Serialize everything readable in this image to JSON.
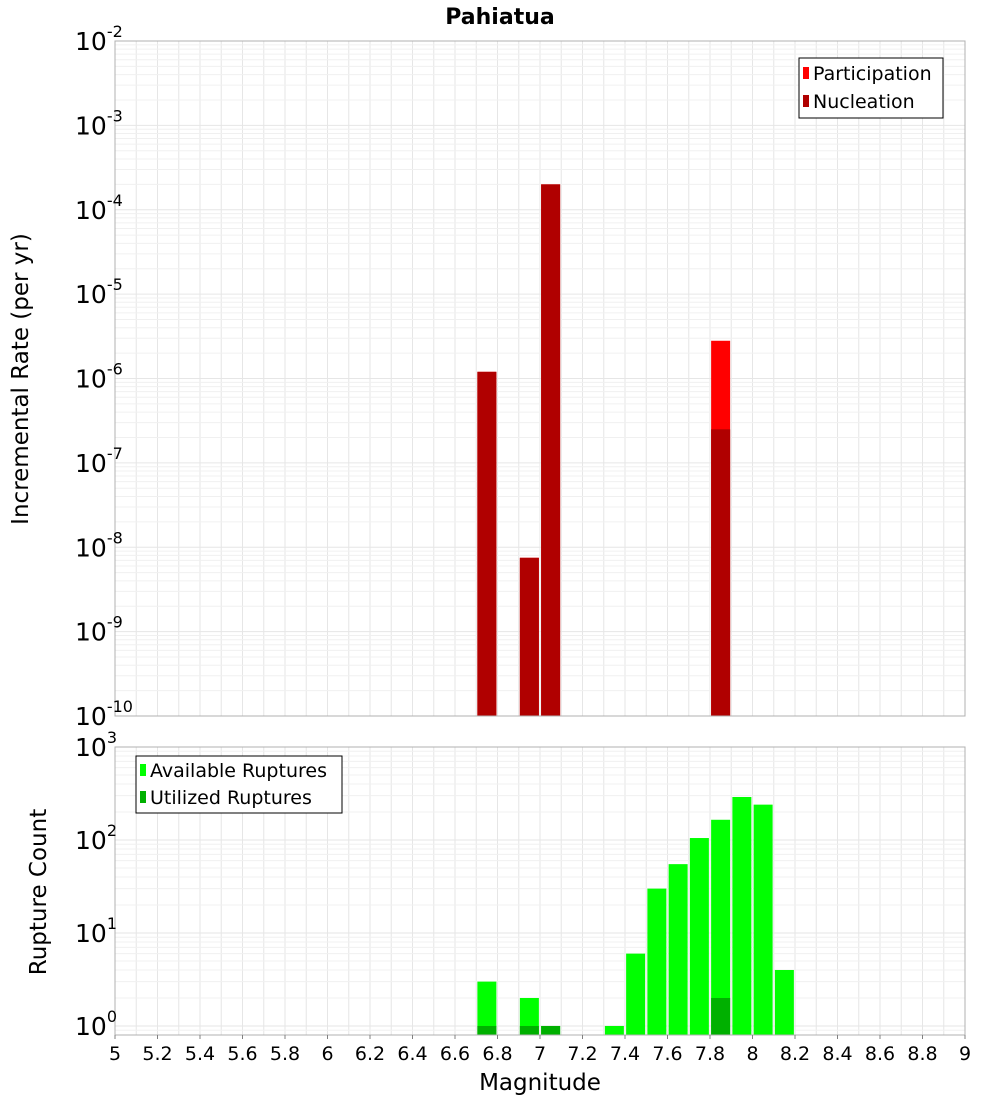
{
  "chart_data": [
    {
      "type": "bar",
      "title": "Pahiatua",
      "ylabel": "Incremental Rate (per yr)",
      "yscale": "log",
      "ylim": [
        1e-10,
        0.01
      ],
      "xlim": [
        5,
        9
      ],
      "grid": true,
      "legend_position": "top-right",
      "y_ticks": [
        {
          "base": "10",
          "exp": "-2",
          "value": 0.01
        },
        {
          "base": "10",
          "exp": "-3",
          "value": 0.001
        },
        {
          "base": "10",
          "exp": "-4",
          "value": 0.0001
        },
        {
          "base": "10",
          "exp": "-5",
          "value": 1e-05
        },
        {
          "base": "10",
          "exp": "-6",
          "value": 1e-06
        },
        {
          "base": "10",
          "exp": "-7",
          "value": 1e-07
        },
        {
          "base": "10",
          "exp": "-8",
          "value": 1e-08
        },
        {
          "base": "10",
          "exp": "-9",
          "value": 1e-09
        },
        {
          "base": "10",
          "exp": "-10",
          "value": 1e-10
        }
      ],
      "series": [
        {
          "name": "Participation",
          "color": "#ff0000",
          "x": [
            6.75,
            6.95,
            7.05,
            7.85
          ],
          "values": [
            1.2e-06,
            7.5e-09,
            0.0002,
            2.8e-06
          ]
        },
        {
          "name": "Nucleation",
          "color": "#b00000",
          "x": [
            6.75,
            6.95,
            7.05,
            7.85
          ],
          "values": [
            1.2e-06,
            7.5e-09,
            0.0002,
            2.5e-07
          ]
        }
      ]
    },
    {
      "type": "bar",
      "xlabel": "Magnitude",
      "ylabel": "Rupture Count",
      "yscale": "log",
      "ylim": [
        0.8,
        1000
      ],
      "xlim": [
        5,
        9
      ],
      "grid": true,
      "legend_position": "top-left",
      "y_ticks": [
        {
          "base": "10",
          "exp": "3",
          "value": 1000
        },
        {
          "base": "10",
          "exp": "2",
          "value": 100
        },
        {
          "base": "10",
          "exp": "1",
          "value": 10
        },
        {
          "base": "10",
          "exp": "0",
          "value": 1
        }
      ],
      "x_ticks": [
        "5",
        "5.2",
        "5.4",
        "5.6",
        "5.8",
        "6",
        "6.2",
        "6.4",
        "6.6",
        "6.8",
        "7",
        "7.2",
        "7.4",
        "7.6",
        "7.8",
        "8",
        "8.2",
        "8.4",
        "8.6",
        "8.8",
        "9"
      ],
      "series": [
        {
          "name": "Available Ruptures",
          "color": "#00ff00",
          "x": [
            6.75,
            6.95,
            7.05,
            7.35,
            7.45,
            7.55,
            7.65,
            7.75,
            7.85,
            7.95,
            8.05,
            8.15
          ],
          "values": [
            3,
            2,
            1,
            1,
            6,
            30,
            55,
            105,
            165,
            290,
            240,
            4
          ]
        },
        {
          "name": "Utilized Ruptures",
          "color": "#00b000",
          "x": [
            6.75,
            6.95,
            7.05,
            7.85
          ],
          "values": [
            1,
            1,
            1,
            2
          ]
        }
      ]
    }
  ]
}
